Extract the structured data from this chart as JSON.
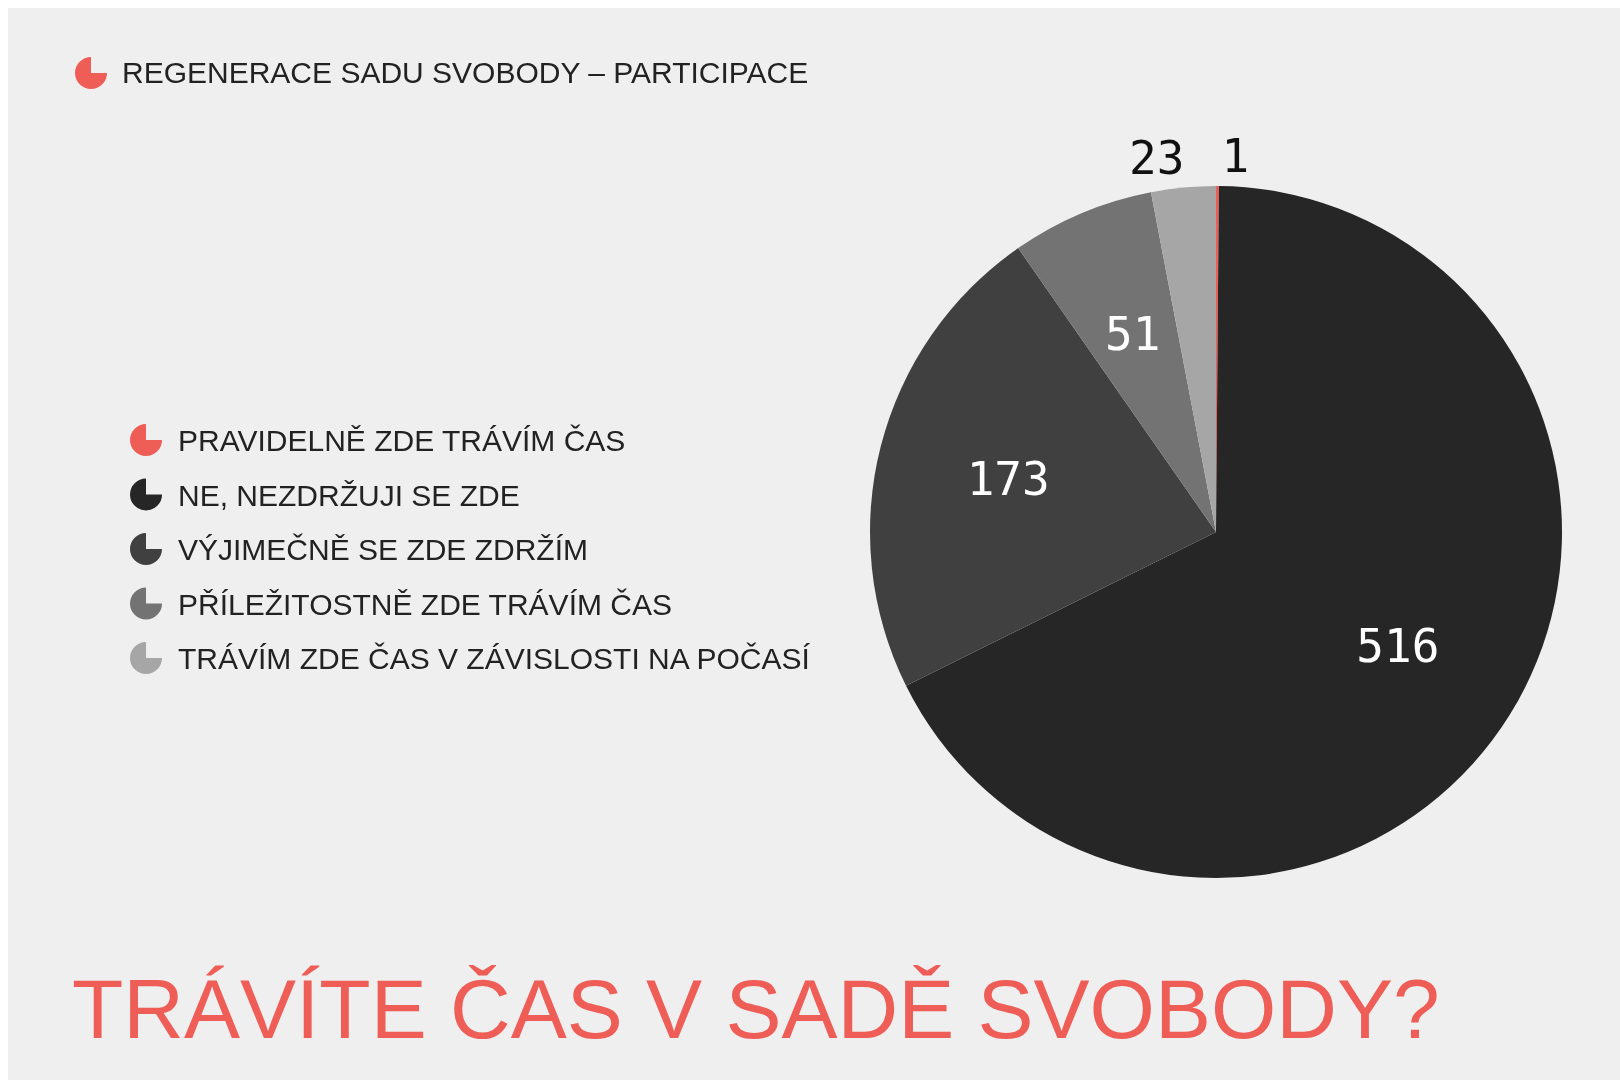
{
  "chart_data": {
    "type": "pie",
    "title": "TRÁVÍTE ČAS V SADĚ SVOBODY?",
    "subtitle": "REGENERACE SADU SVOBODY – PARTICIPACE",
    "categories": [
      "PRAVIDELNĚ ZDE TRÁVÍM ČAS",
      "NE, NEZDRŽUJI SE ZDE",
      "VÝJIMEČNĚ SE ZDE ZDRŽÍM",
      "PŘÍLEŽITOSTNĚ ZDE TRÁVÍM ČAS",
      "TRÁVÍM ZDE ČAS V ZÁVISLOSTI NA POČASÍ"
    ],
    "values": [
      1,
      516,
      173,
      51,
      23
    ],
    "colors": [
      "#ef5d57",
      "#262626",
      "#404040",
      "#737373",
      "#a6a6a6"
    ],
    "data_labels": true,
    "legend": "left"
  }
}
